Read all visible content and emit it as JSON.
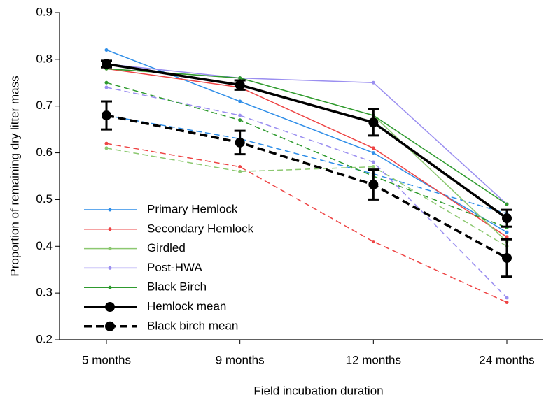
{
  "chart_data": {
    "type": "line",
    "xlabel": "Field incubation duration",
    "ylabel": "Proportion of remaining dry litter mass",
    "categories": [
      "5 months",
      "9 months",
      "12 months",
      "24 months"
    ],
    "ylim": [
      0.2,
      0.9
    ],
    "yticks": [
      0.2,
      0.3,
      0.4,
      0.5,
      0.6,
      0.7,
      0.8,
      0.9
    ],
    "series": [
      {
        "name": "Primary Hemlock",
        "color": "#2f8ee8",
        "values": [
          0.82,
          0.71,
          0.6,
          0.43
        ],
        "dashed_values": [
          0.68,
          0.63,
          0.555,
          0.47
        ]
      },
      {
        "name": "Secondary Hemlock",
        "color": "#ee4444",
        "values": [
          0.78,
          0.74,
          0.61,
          0.42
        ],
        "dashed_values": [
          0.62,
          0.57,
          0.41,
          0.28
        ]
      },
      {
        "name": "Girdled",
        "color": "#8cc870",
        "values": [
          0.78,
          0.76,
          0.68,
          0.41
        ],
        "dashed_values": [
          0.61,
          0.56,
          0.57,
          0.4
        ]
      },
      {
        "name": "Post-HWA",
        "color": "#9a8ef0",
        "values": [
          0.79,
          0.76,
          0.75,
          0.49
        ],
        "dashed_values": [
          0.74,
          0.68,
          0.58,
          0.29
        ]
      },
      {
        "name": "Black Birch",
        "color": "#2e9a2e",
        "values": [
          0.78,
          0.76,
          0.68,
          0.49
        ],
        "dashed_values": [
          0.75,
          0.67,
          0.55,
          0.44
        ]
      },
      {
        "name": "Hemlock mean",
        "color": "#000000",
        "dashed": false,
        "values": [
          0.79,
          0.745,
          0.665,
          0.46
        ],
        "errors": [
          0.007,
          0.01,
          0.028,
          0.018
        ]
      },
      {
        "name": "Black birch mean",
        "color": "#000000",
        "dashed": true,
        "values": [
          0.68,
          0.622,
          0.532,
          0.375
        ],
        "errors": [
          0.03,
          0.025,
          0.032,
          0.04
        ]
      }
    ]
  }
}
